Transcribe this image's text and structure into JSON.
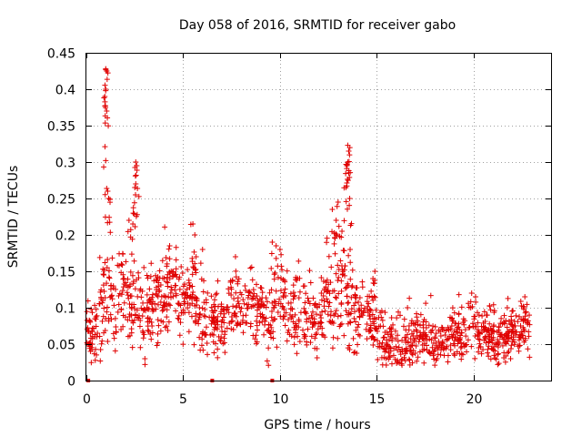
{
  "chart_data": {
    "type": "scatter",
    "title": "Day 058 of 2016, SRMTID for receiver gabo",
    "xlabel": "GPS time / hours",
    "ylabel": "SRMTID / TECUs",
    "xlim": [
      0,
      24
    ],
    "ylim": [
      0,
      0.45
    ],
    "x_ticks": [
      0,
      5,
      10,
      15,
      20
    ],
    "x_tick_labels": [
      "0",
      "5",
      "10",
      "15",
      "20"
    ],
    "y_ticks": [
      0,
      0.05,
      0.1,
      0.15,
      0.2,
      0.25,
      0.3,
      0.35,
      0.4,
      0.45
    ],
    "y_tick_labels": [
      "0",
      "0.05",
      "0.1",
      "0.15",
      "0.2",
      "0.25",
      "0.3",
      "0.35",
      "0.4",
      "0.45"
    ],
    "grid": true,
    "marker": "plus",
    "color": "#e00000",
    "series": [
      {
        "name": "SRMTID",
        "description": "Dense scatter sampled at the visible density; envelope of typical values per time segment plus notable peaks",
        "baseline": [
          {
            "x": 0.0,
            "y": 0.07
          },
          {
            "x": 0.5,
            "y": 0.065
          },
          {
            "x": 1.0,
            "y": 0.11
          },
          {
            "x": 1.5,
            "y": 0.1
          },
          {
            "x": 2.0,
            "y": 0.13
          },
          {
            "x": 2.5,
            "y": 0.11
          },
          {
            "x": 3.0,
            "y": 0.09
          },
          {
            "x": 3.5,
            "y": 0.11
          },
          {
            "x": 4.0,
            "y": 0.12
          },
          {
            "x": 4.5,
            "y": 0.12
          },
          {
            "x": 5.0,
            "y": 0.1
          },
          {
            "x": 5.5,
            "y": 0.12
          },
          {
            "x": 6.0,
            "y": 0.07
          },
          {
            "x": 6.5,
            "y": 0.08
          },
          {
            "x": 7.0,
            "y": 0.08
          },
          {
            "x": 7.5,
            "y": 0.1
          },
          {
            "x": 8.0,
            "y": 0.1
          },
          {
            "x": 8.5,
            "y": 0.1
          },
          {
            "x": 9.0,
            "y": 0.09
          },
          {
            "x": 9.5,
            "y": 0.08
          },
          {
            "x": 10.0,
            "y": 0.12
          },
          {
            "x": 10.5,
            "y": 0.09
          },
          {
            "x": 11.0,
            "y": 0.08
          },
          {
            "x": 11.5,
            "y": 0.09
          },
          {
            "x": 12.0,
            "y": 0.07
          },
          {
            "x": 12.5,
            "y": 0.12
          },
          {
            "x": 13.0,
            "y": 0.13
          },
          {
            "x": 13.5,
            "y": 0.11
          },
          {
            "x": 14.0,
            "y": 0.09
          },
          {
            "x": 14.5,
            "y": 0.1
          },
          {
            "x": 15.0,
            "y": 0.07
          },
          {
            "x": 15.5,
            "y": 0.055
          },
          {
            "x": 16.0,
            "y": 0.055
          },
          {
            "x": 16.5,
            "y": 0.055
          },
          {
            "x": 17.0,
            "y": 0.06
          },
          {
            "x": 17.5,
            "y": 0.055
          },
          {
            "x": 18.0,
            "y": 0.05
          },
          {
            "x": 18.5,
            "y": 0.055
          },
          {
            "x": 19.0,
            "y": 0.06
          },
          {
            "x": 19.5,
            "y": 0.065
          },
          {
            "x": 20.0,
            "y": 0.07
          },
          {
            "x": 20.5,
            "y": 0.065
          },
          {
            "x": 21.0,
            "y": 0.065
          },
          {
            "x": 21.5,
            "y": 0.06
          },
          {
            "x": 22.0,
            "y": 0.07
          },
          {
            "x": 22.5,
            "y": 0.075
          },
          {
            "x": 22.9,
            "y": 0.07
          }
        ],
        "spread": [
          {
            "x": 0.0,
            "s": 0.025
          },
          {
            "x": 1.0,
            "s": 0.05
          },
          {
            "x": 2.5,
            "s": 0.05
          },
          {
            "x": 5.0,
            "s": 0.04
          },
          {
            "x": 7.0,
            "s": 0.03
          },
          {
            "x": 10.0,
            "s": 0.04
          },
          {
            "x": 13.0,
            "s": 0.05
          },
          {
            "x": 15.0,
            "s": 0.03
          },
          {
            "x": 18.0,
            "s": 0.025
          },
          {
            "x": 22.9,
            "s": 0.025
          }
        ],
        "peaks": [
          {
            "x": 1.0,
            "y": 0.428
          },
          {
            "x": 1.05,
            "y": 0.425
          },
          {
            "x": 1.0,
            "y": 0.4
          },
          {
            "x": 0.95,
            "y": 0.39
          },
          {
            "x": 1.05,
            "y": 0.37
          },
          {
            "x": 1.0,
            "y": 0.302
          },
          {
            "x": 1.1,
            "y": 0.26
          },
          {
            "x": 1.15,
            "y": 0.25
          },
          {
            "x": 2.55,
            "y": 0.3
          },
          {
            "x": 2.6,
            "y": 0.295
          },
          {
            "x": 2.55,
            "y": 0.27
          },
          {
            "x": 2.5,
            "y": 0.265
          },
          {
            "x": 2.2,
            "y": 0.22
          },
          {
            "x": 2.4,
            "y": 0.215
          },
          {
            "x": 5.5,
            "y": 0.215
          },
          {
            "x": 5.6,
            "y": 0.2
          },
          {
            "x": 4.3,
            "y": 0.185
          },
          {
            "x": 6.0,
            "y": 0.18
          },
          {
            "x": 7.7,
            "y": 0.17
          },
          {
            "x": 9.6,
            "y": 0.19
          },
          {
            "x": 9.8,
            "y": 0.185
          },
          {
            "x": 10.0,
            "y": 0.18
          },
          {
            "x": 13.5,
            "y": 0.323
          },
          {
            "x": 13.55,
            "y": 0.315
          },
          {
            "x": 13.5,
            "y": 0.3
          },
          {
            "x": 13.45,
            "y": 0.295
          },
          {
            "x": 13.55,
            "y": 0.285
          },
          {
            "x": 13.4,
            "y": 0.265
          },
          {
            "x": 13.0,
            "y": 0.245
          },
          {
            "x": 12.7,
            "y": 0.235
          },
          {
            "x": 13.6,
            "y": 0.25
          },
          {
            "x": 12.9,
            "y": 0.22
          },
          {
            "x": 13.2,
            "y": 0.205
          },
          {
            "x": 14.9,
            "y": 0.15
          },
          {
            "x": 14.8,
            "y": 0.14
          },
          {
            "x": 19.9,
            "y": 0.12
          },
          {
            "x": 20.1,
            "y": 0.115
          },
          {
            "x": 22.6,
            "y": 0.1
          }
        ],
        "zero_markers": [
          {
            "x": 0.1,
            "y": 0
          },
          {
            "x": 6.5,
            "y": 0
          },
          {
            "x": 9.6,
            "y": 0
          }
        ]
      }
    ]
  }
}
